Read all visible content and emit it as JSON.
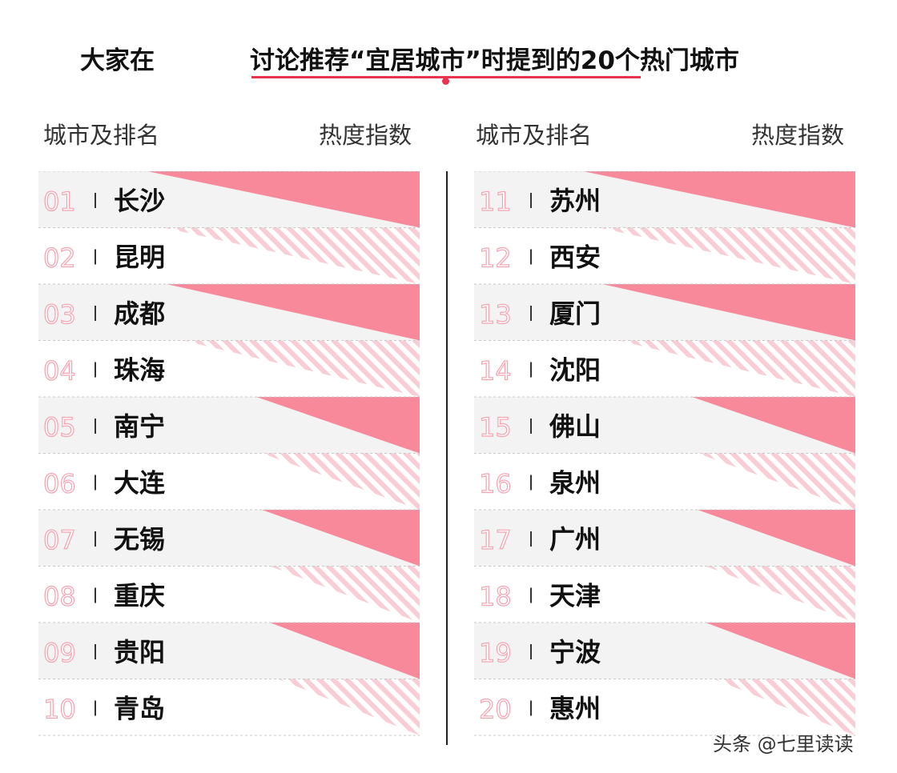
{
  "header": {
    "title_left": "大家在",
    "title_right": "讨论推荐“宜居城市”时提到的20个热门城市"
  },
  "columns": {
    "left_city_header": "城市及排名",
    "left_heat_header": "热度指数",
    "right_city_header": "城市及排名",
    "right_heat_header": "热度指数"
  },
  "footer": {
    "watermark": "头条 @七里读读"
  },
  "colors": {
    "accent": "#e8344f",
    "bar": "#f7899b",
    "stripe": "#f9cdd5",
    "band": "#f3f3f3"
  },
  "chart_data": {
    "type": "bar",
    "categories": [
      "长沙",
      "昆明",
      "成都",
      "珠海",
      "南宁",
      "大连",
      "无锡",
      "重庆",
      "贵阳",
      "青岛",
      "苏州",
      "西安",
      "厦门",
      "沈阳",
      "佛山",
      "泉州",
      "广州",
      "天津",
      "宁波",
      "惠州"
    ],
    "ranks": [
      "01",
      "02",
      "03",
      "04",
      "05",
      "06",
      "07",
      "08",
      "09",
      "10",
      "11",
      "12",
      "13",
      "14",
      "15",
      "16",
      "17",
      "18",
      "19",
      "20"
    ],
    "values": [
      100,
      94,
      93,
      87,
      60,
      58,
      58,
      55,
      55,
      52,
      100,
      94,
      93,
      87,
      60,
      58,
      58,
      55,
      55,
      52
    ]
  }
}
